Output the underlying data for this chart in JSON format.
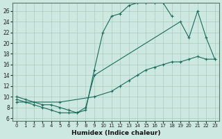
{
  "xlabel": "Humidex (Indice chaleur)",
  "xlim": [
    -0.5,
    23.5
  ],
  "ylim": [
    5.5,
    27.5
  ],
  "xticks": [
    0,
    1,
    2,
    3,
    4,
    5,
    6,
    7,
    8,
    9,
    10,
    11,
    12,
    13,
    14,
    15,
    16,
    17,
    18,
    19,
    20,
    21,
    22,
    23
  ],
  "yticks": [
    6,
    8,
    10,
    12,
    14,
    16,
    18,
    20,
    22,
    24,
    26
  ],
  "bg_color": "#cce8e0",
  "grid_color": "#aaccbb",
  "line_color": "#1a6b5a",
  "line1_x": [
    0,
    1,
    2,
    3,
    4,
    5,
    6,
    7,
    8,
    9,
    10,
    11,
    12,
    13,
    14,
    15,
    16,
    17,
    18
  ],
  "line1_y": [
    10,
    9.5,
    9,
    8.5,
    8.5,
    8,
    7.5,
    7,
    7.5,
    15,
    22,
    25,
    25.5,
    27,
    27.5,
    27.5,
    27.5,
    27.5,
    25
  ],
  "line2_x": [
    0,
    1,
    2,
    3,
    4,
    5,
    6,
    7,
    8,
    9,
    19,
    20,
    21,
    22,
    23
  ],
  "line2_y": [
    9.5,
    9,
    8.5,
    8,
    7.5,
    7,
    7,
    7,
    8,
    14,
    24,
    21,
    26,
    21,
    17
  ],
  "line3_x": [
    0,
    5,
    9,
    11,
    12,
    13,
    14,
    15,
    16,
    17,
    18,
    19,
    20,
    21,
    22,
    23
  ],
  "line3_y": [
    9,
    9,
    10,
    11,
    12,
    13,
    14,
    15,
    15.5,
    16,
    16.5,
    16.5,
    17,
    17.5,
    17,
    17
  ]
}
